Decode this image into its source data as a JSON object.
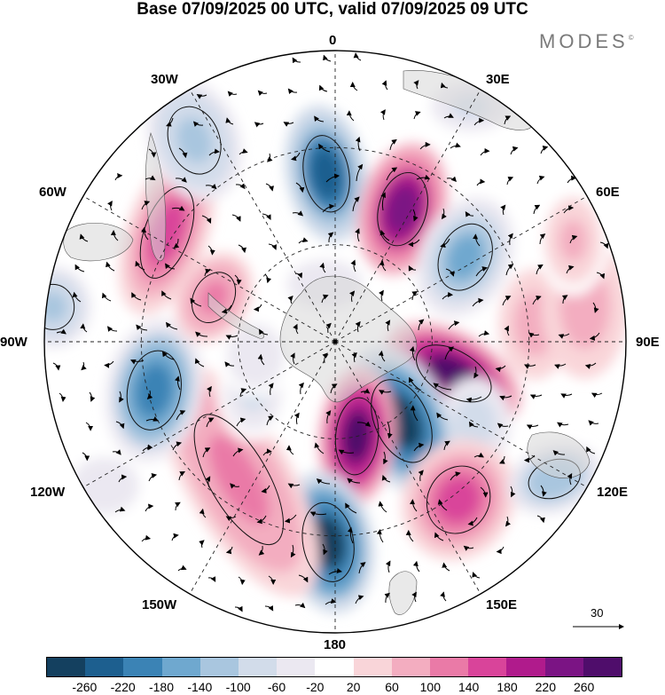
{
  "title": "Base 07/09/2025 00 UTC, valid 07/09/2025 09 UTC",
  "brand": {
    "name": "MODES",
    "mark": "©"
  },
  "longitude_labels": {
    "n": "0",
    "e30": "30E",
    "e60": "60E",
    "e90": "90E",
    "e120": "120E",
    "e150": "150E",
    "s": "180",
    "w150": "150W",
    "w120": "120W",
    "w90": "90W",
    "w60": "60W",
    "w30": "30W"
  },
  "reference_vector": {
    "label": "30"
  },
  "colorbar": {
    "ticks": [
      "-260",
      "-220",
      "-180",
      "-140",
      "-100",
      "-60",
      "-20",
      "20",
      "60",
      "100",
      "140",
      "180",
      "220",
      "260"
    ],
    "colors": [
      "#14405f",
      "#1d5f8f",
      "#3b83b5",
      "#6fa8cf",
      "#a9c6df",
      "#d2dcea",
      "#ebe8f1",
      "#ffffff",
      "#f9d5d9",
      "#f3adc0",
      "#ea7aa7",
      "#d9449a",
      "#b01b8c",
      "#7b1484",
      "#4f0d6b"
    ]
  },
  "anomaly_cells": [
    {
      "lon": -3,
      "colat": 52,
      "value": -230,
      "rx": 34,
      "ry": 58,
      "rot": -10
    },
    {
      "lon": 27,
      "colat": 46,
      "value": 250,
      "rx": 36,
      "ry": 56,
      "rot": 15
    },
    {
      "lon": 57,
      "colat": 48,
      "value": -160,
      "rx": 38,
      "ry": 52,
      "rot": 25
    },
    {
      "lon": 85,
      "colat": 62,
      "value": 80,
      "rx": 30,
      "ry": 46,
      "rot": 0
    },
    {
      "lon": 105,
      "colat": 38,
      "value": 270,
      "rx": 34,
      "ry": 62,
      "rot": 120
    },
    {
      "lon": 120,
      "colat": 50,
      "value": -90,
      "rx": 30,
      "ry": 38,
      "rot": 0
    },
    {
      "lon": 140,
      "colat": 32,
      "value": -270,
      "rx": 40,
      "ry": 66,
      "rot": -25
    },
    {
      "lon": 142,
      "colat": 62,
      "value": 160,
      "rx": 46,
      "ry": 52,
      "rot": 30
    },
    {
      "lon": 167,
      "colat": 30,
      "value": 260,
      "rx": 32,
      "ry": 58,
      "rot": 5
    },
    {
      "lon": -178,
      "colat": 62,
      "value": -260,
      "rx": 38,
      "ry": 60,
      "rot": -10
    },
    {
      "lon": -145,
      "colat": 52,
      "value": 110,
      "rx": 44,
      "ry": 110,
      "rot": -30
    },
    {
      "lon": -122,
      "colat": 30,
      "value": -60,
      "rx": 30,
      "ry": 40,
      "rot": 0
    },
    {
      "lon": -105,
      "colat": 58,
      "value": -190,
      "rx": 40,
      "ry": 60,
      "rot": 10
    },
    {
      "lon": -100,
      "colat": 25,
      "value": -40,
      "rx": 30,
      "ry": 34,
      "rot": 0
    },
    {
      "lon": -70,
      "colat": 40,
      "value": 120,
      "rx": 30,
      "ry": 40,
      "rot": 30
    },
    {
      "lon": -57,
      "colat": 62,
      "value": 150,
      "rx": 34,
      "ry": 72,
      "rot": 20
    },
    {
      "lon": -83,
      "colat": 88,
      "value": -120,
      "rx": 32,
      "ry": 34,
      "rot": 0
    },
    {
      "lon": -35,
      "colat": 76,
      "value": -110,
      "rx": 38,
      "ry": 52,
      "rot": -20
    },
    {
      "lon": 82,
      "colat": 78,
      "value": 90,
      "rx": 36,
      "ry": 60,
      "rot": 0
    },
    {
      "lon": 67,
      "colat": 80,
      "value": 60,
      "rx": 30,
      "ry": 46,
      "rot": 0
    },
    {
      "lon": 122,
      "colat": 80,
      "value": -130,
      "rx": 40,
      "ry": 28,
      "rot": -20
    },
    {
      "lon": -122,
      "colat": 84,
      "value": -40,
      "rx": 36,
      "ry": 30,
      "rot": 0
    },
    {
      "lon": 30,
      "colat": 84,
      "value": -60,
      "rx": 42,
      "ry": 26,
      "rot": 0
    },
    {
      "lon": -10,
      "colat": 18,
      "value": -50,
      "rx": 40,
      "ry": 26,
      "rot": 0
    }
  ]
}
